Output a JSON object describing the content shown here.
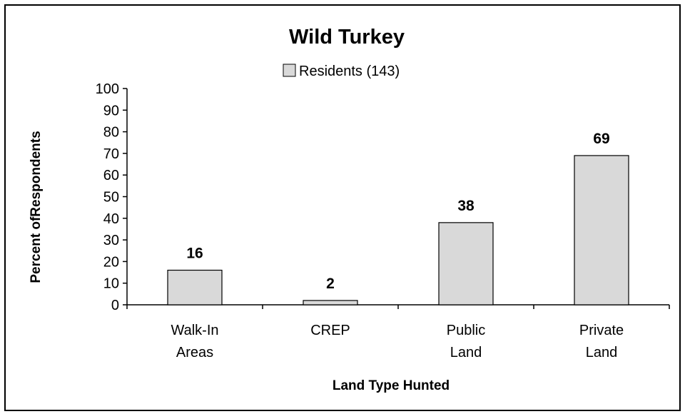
{
  "chart_data": {
    "type": "bar",
    "title": "Wild Turkey",
    "xlabel": "Land Type Hunted",
    "ylabel": "Percent ofRespondents",
    "categories": [
      [
        "Walk-In",
        "Areas"
      ],
      [
        "CREP"
      ],
      [
        "Public",
        "Land"
      ],
      [
        "Private",
        "Land"
      ]
    ],
    "series": [
      {
        "name": "Residents (143)",
        "values": [
          16,
          2,
          38,
          69
        ]
      }
    ],
    "data_labels": [
      "16",
      "2",
      "38",
      "69"
    ],
    "ylim": [
      0,
      100
    ],
    "yticks": [
      0,
      10,
      20,
      30,
      40,
      50,
      60,
      70,
      80,
      90,
      100
    ],
    "grid": false,
    "legend_position": "top-center",
    "colors": {
      "bar_fill": "#d9d9d9",
      "bar_stroke": "#000000",
      "border": "#000000"
    }
  }
}
